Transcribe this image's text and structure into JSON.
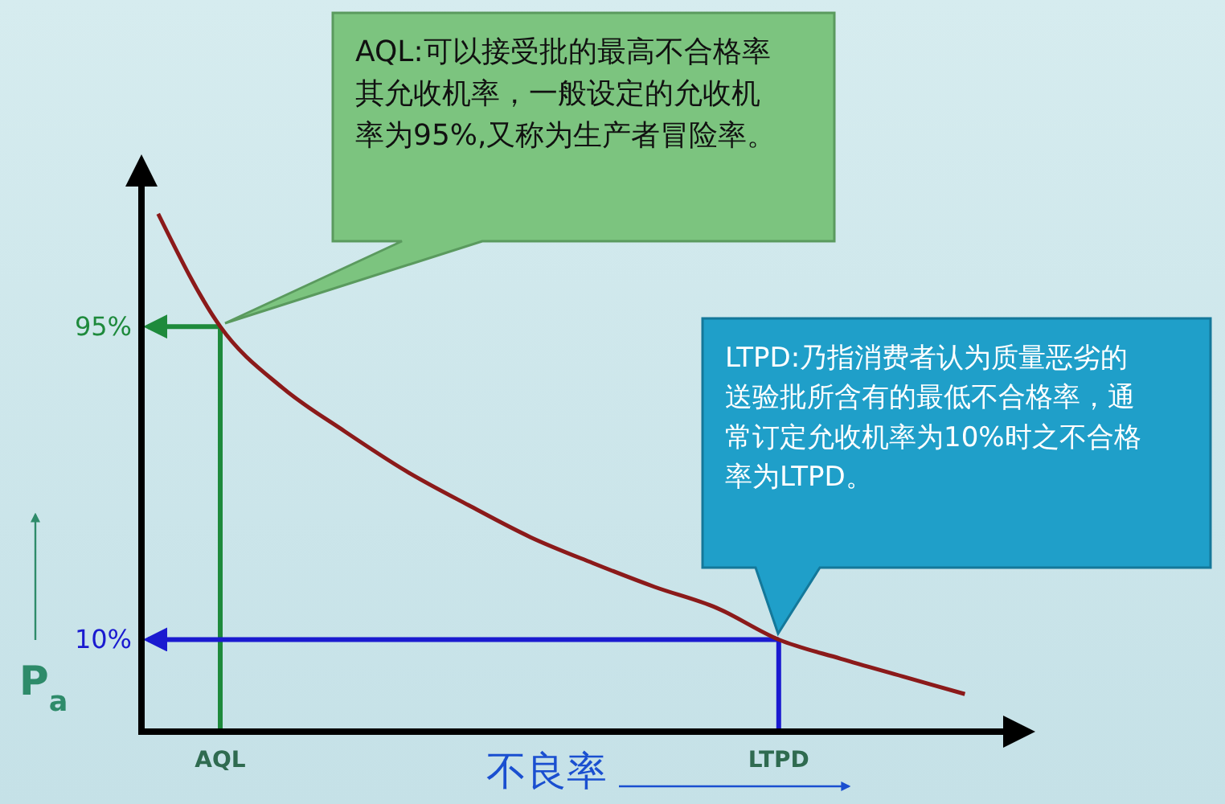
{
  "chart_data": {
    "type": "line",
    "ylabel": "P$_{a}$",
    "xlabel": "不良率",
    "categories": [
      null,
      "AQL",
      null,
      null,
      null,
      null,
      null,
      null,
      null,
      null,
      "LTPD",
      null,
      null,
      null
    ],
    "series": [
      {
        "color": "#8b1a1a",
        "values": [
          125.6,
          95,
          78.4,
          66.6,
          55.7,
          46.5,
          37.8,
          30.8,
          24.3,
          18.6,
          10,
          4.8,
          0,
          -4.8
        ]
      }
    ],
    "ylim": [
      -15,
      140
    ],
    "yticks": [
      {
        "value": 10,
        "label": "10%"
      },
      {
        "value": 95,
        "label": "95%"
      }
    ],
    "ref_lines": [
      {
        "axis": "y",
        "value": 95,
        "color": "#1e8a3c"
      },
      {
        "axis": "x",
        "value": "AQL",
        "color": "#1e8a3c"
      },
      {
        "axis": "y",
        "value": 10,
        "color": "#1a1ad0"
      },
      {
        "axis": "x",
        "value": "LTPD",
        "color": "#1a1ad0"
      }
    ],
    "annotations": [
      "AQL:可以接受批的最高不合格率其允收机率，一般设定的允收机率为95%,又称为生产者冒险率。",
      "LTPD:乃指消费者认为质量恶劣的送验批所含有的最低不合格率，通常订定允收机率为10%时之不合格率为LTPD。"
    ],
    "grid": false
  }
}
